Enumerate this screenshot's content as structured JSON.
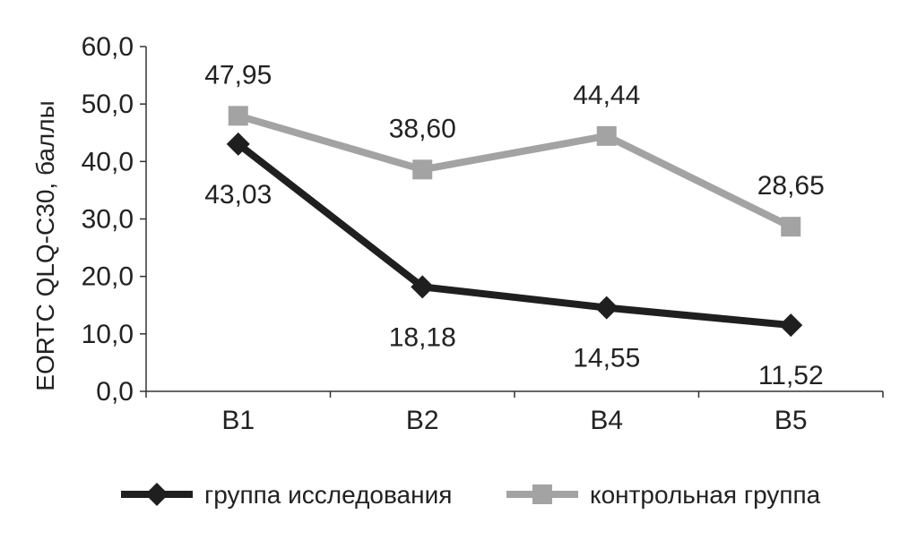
{
  "chart_data": {
    "type": "line",
    "categories": [
      "B1",
      "B2",
      "B4",
      "B5"
    ],
    "series": [
      {
        "name": "группа исследования",
        "values": [
          43.03,
          18.18,
          14.55,
          11.52
        ],
        "labels": [
          "43,03",
          "18,18",
          "14,55",
          "11,52"
        ],
        "color": "#1f1f1f",
        "marker": "diamond"
      },
      {
        "name": "контрольная группа",
        "values": [
          47.95,
          38.6,
          44.44,
          28.65
        ],
        "labels": [
          "47,95",
          "38,60",
          "44,44",
          "28,65"
        ],
        "color": "#a3a3a3",
        "marker": "square"
      }
    ],
    "ylabel": "EORTC QLQ-C30, баллы",
    "xlabel": "",
    "ylim": [
      0,
      60
    ],
    "yticks": [
      "0,0",
      "10,0",
      "20,0",
      "30,0",
      "40,0",
      "50,0",
      "60,0"
    ],
    "grid": false,
    "legend_position": "bottom"
  }
}
